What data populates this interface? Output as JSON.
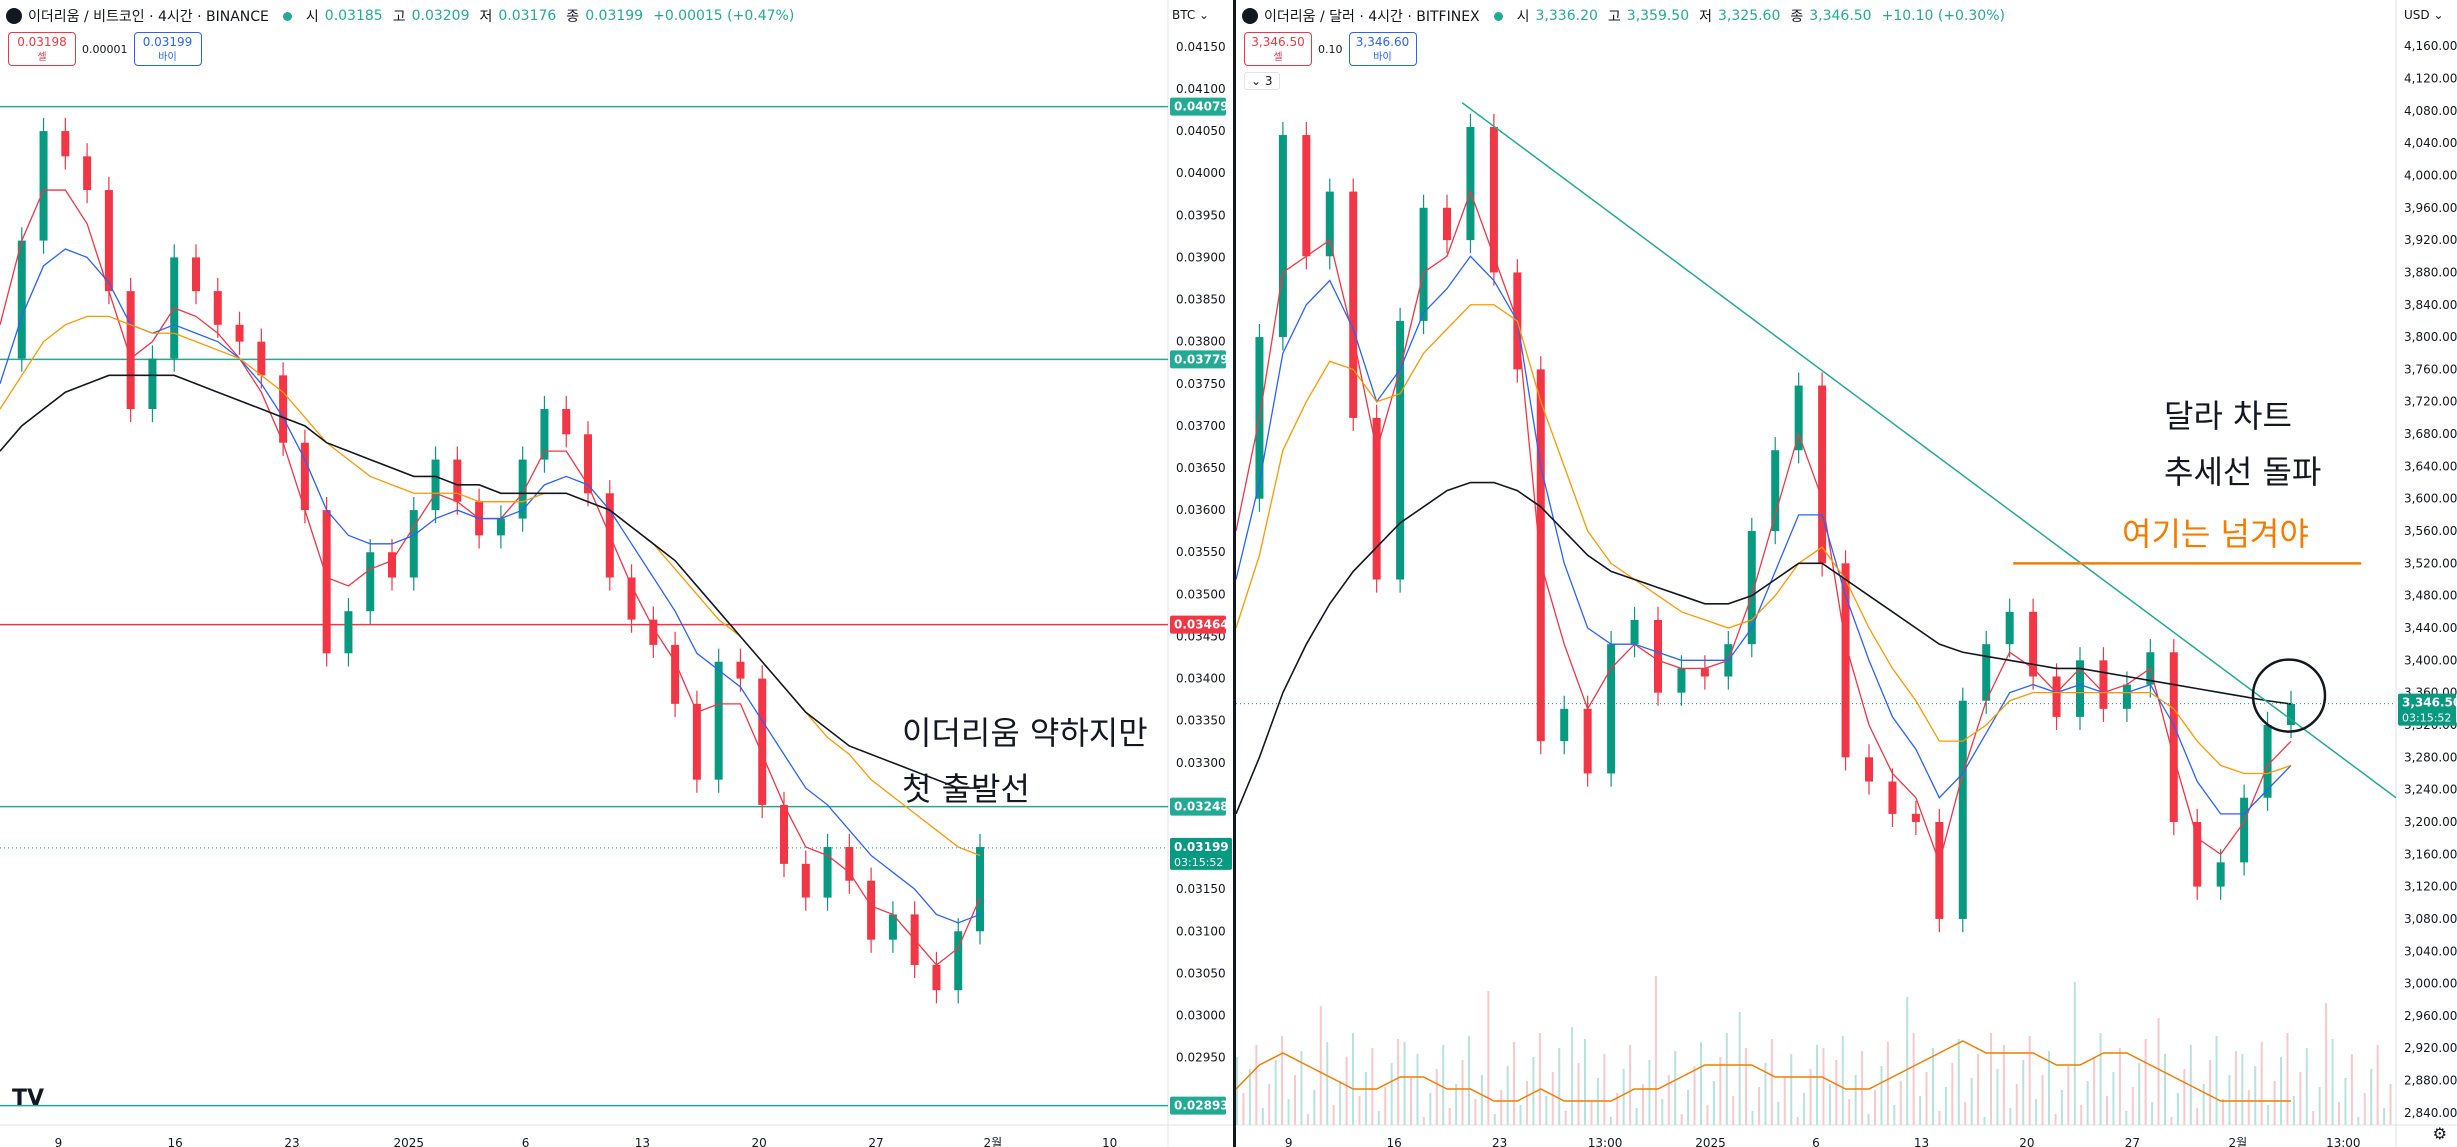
{
  "left": {
    "legend": {
      "title": "이더리움 / 비트코인 · 4시간 · BINANCE",
      "o_label": "시",
      "o": "0.03185",
      "h_label": "고",
      "h": "0.03209",
      "l_label": "저",
      "l": "0.03176",
      "c_label": "종",
      "c": "0.03199",
      "chg": "+0.00015 (+0.47%)"
    },
    "trade": {
      "sell_price": "0.03198",
      "sell_label": "셀",
      "spread": "0.00001",
      "buy_price": "0.03199",
      "buy_label": "바이"
    },
    "currency": "BTC ⌄",
    "annotation": {
      "line1": "이더리움 약하지만",
      "line2": "첫 출발선"
    },
    "chart_data": {
      "type": "line",
      "title": "",
      "ylim": [
        0.0287,
        0.0417
      ],
      "y_ticks": [
        "0.04150",
        "0.04100",
        "0.04050",
        "0.04000",
        "0.03950",
        "0.03900",
        "0.03850",
        "0.03800",
        "0.03750",
        "0.03700",
        "0.03650",
        "0.03600",
        "0.03550",
        "0.03500",
        "0.03450",
        "0.03400",
        "0.03350",
        "0.03300",
        "0.03250",
        "0.03200",
        "0.03150",
        "0.03100",
        "0.03050",
        "0.03000",
        "0.02950"
      ],
      "x_ticks": [
        "9",
        "16",
        "23",
        "2025",
        "6",
        "13",
        "20",
        "27",
        "2월",
        "10"
      ],
      "horizontal_lines": [
        {
          "value": 0.04079,
          "label": "0.04079",
          "color": "#22ab94"
        },
        {
          "value": 0.03779,
          "label": "0.03779",
          "color": "#22ab94"
        },
        {
          "value": 0.03464,
          "label": "0.03464",
          "color": "#f23645"
        },
        {
          "value": 0.03248,
          "label": "0.03248",
          "color": "#22ab94"
        },
        {
          "value": 0.02893,
          "label": "0.02893",
          "color": "#22ab94"
        }
      ],
      "last_price": {
        "value": 0.03199,
        "label": "0.03199",
        "countdown": "03:15:52"
      },
      "series": [
        {
          "name": "price",
          "color": "#4a4a4a",
          "values": [
            0.0378,
            0.0392,
            0.0405,
            0.0402,
            0.0398,
            0.0386,
            0.0372,
            0.0378,
            0.039,
            0.0386,
            0.0382,
            0.038,
            0.0376,
            0.0368,
            0.036,
            0.0343,
            0.0348,
            0.0355,
            0.0352,
            0.036,
            0.0366,
            0.0361,
            0.0357,
            0.0359,
            0.0366,
            0.0372,
            0.0369,
            0.0362,
            0.0352,
            0.0347,
            0.0344,
            0.0337,
            0.0328,
            0.0342,
            0.034,
            0.0325,
            0.0318,
            0.0314,
            0.032,
            0.0316,
            0.0309,
            0.0312,
            0.0306,
            0.0303,
            0.031,
            0.032
          ]
        },
        {
          "name": "ma-short",
          "color": "#f23645",
          "values": [
            0.0382,
            0.0392,
            0.0398,
            0.0398,
            0.0394,
            0.0386,
            0.0378,
            0.038,
            0.0384,
            0.0383,
            0.0381,
            0.0378,
            0.0374,
            0.0368,
            0.036,
            0.0352,
            0.0351,
            0.0353,
            0.0354,
            0.0358,
            0.0362,
            0.0361,
            0.0359,
            0.0359,
            0.0362,
            0.0367,
            0.0367,
            0.0363,
            0.0357,
            0.0351,
            0.0346,
            0.0342,
            0.0336,
            0.0337,
            0.0337,
            0.0331,
            0.0325,
            0.032,
            0.0319,
            0.0317,
            0.0313,
            0.0312,
            0.0309,
            0.0306,
            0.0308,
            0.0314
          ]
        },
        {
          "name": "ma-mid",
          "color": "#2962ff",
          "values": [
            0.0375,
            0.0383,
            0.0389,
            0.0391,
            0.039,
            0.0387,
            0.0382,
            0.0381,
            0.0382,
            0.0381,
            0.038,
            0.0378,
            0.0375,
            0.0371,
            0.0366,
            0.036,
            0.0357,
            0.0356,
            0.0356,
            0.0357,
            0.0359,
            0.036,
            0.0359,
            0.0359,
            0.036,
            0.0363,
            0.0364,
            0.0363,
            0.036,
            0.0356,
            0.0352,
            0.0348,
            0.0343,
            0.0341,
            0.0339,
            0.0335,
            0.0331,
            0.0327,
            0.0325,
            0.0322,
            0.0319,
            0.0317,
            0.0315,
            0.0312,
            0.0311,
            0.0312
          ]
        },
        {
          "name": "ma-long",
          "color": "#ff9800",
          "values": [
            0.0372,
            0.0376,
            0.038,
            0.0382,
            0.0383,
            0.0383,
            0.0382,
            0.0381,
            0.0381,
            0.038,
            0.0379,
            0.0378,
            0.0376,
            0.0374,
            0.0371,
            0.0368,
            0.0366,
            0.0364,
            0.0363,
            0.0362,
            0.0362,
            0.0362,
            0.0361,
            0.0361,
            0.0361,
            0.0362,
            0.0362,
            0.0361,
            0.036,
            0.0358,
            0.0356,
            0.0353,
            0.035,
            0.0347,
            0.0345,
            0.0342,
            0.0339,
            0.0336,
            0.0333,
            0.0331,
            0.0328,
            0.0326,
            0.0324,
            0.0322,
            0.032,
            0.0319
          ]
        },
        {
          "name": "ma-200",
          "color": "#131722",
          "values": [
            0.0367,
            0.037,
            0.0372,
            0.0374,
            0.0375,
            0.0376,
            0.0376,
            0.0376,
            0.0376,
            0.0375,
            0.0374,
            0.0373,
            0.0372,
            0.0371,
            0.037,
            0.0368,
            0.0367,
            0.0366,
            0.0365,
            0.0364,
            0.0364,
            0.0363,
            0.0363,
            0.0362,
            0.0362,
            0.0362,
            0.0362,
            0.0361,
            0.036,
            0.0358,
            0.0356,
            0.0354,
            0.0351,
            0.0348,
            0.0345,
            0.0342,
            0.0339,
            0.0336,
            0.0334,
            0.0332,
            0.0331,
            0.033,
            0.0329,
            0.0328,
            0.0327,
            0.0327
          ]
        }
      ]
    }
  },
  "right": {
    "legend": {
      "title": "이더리움 / 달러 · 4시간 · BITFINEX",
      "o_label": "시",
      "o": "3,336.20",
      "h_label": "고",
      "h": "3,359.50",
      "l_label": "저",
      "l": "3,325.60",
      "c_label": "종",
      "c": "3,346.50",
      "chg": "+10.10 (+0.30%)"
    },
    "trade": {
      "sell_price": "3,346.50",
      "sell_label": "셀",
      "spread": "0.10",
      "buy_price": "3,346.60",
      "buy_label": "바이"
    },
    "indicator_toggle": "⌄ 3",
    "currency": "USD ⌄",
    "annotation": {
      "line1": "달라 차트",
      "line2": "추세선 돌파",
      "line3": "여기는 넘겨야"
    },
    "chart_data": {
      "type": "line",
      "title": "",
      "ylim": [
        2825,
        4180
      ],
      "y_ticks": [
        "4,160.00",
        "4,120.00",
        "4,080.00",
        "4,040.00",
        "4,000.00",
        "3,960.00",
        "3,920.00",
        "3,880.00",
        "3,840.00",
        "3,800.00",
        "3,760.00",
        "3,720.00",
        "3,680.00",
        "3,640.00",
        "3,600.00",
        "3,560.00",
        "3,520.00",
        "3,480.00",
        "3,440.00",
        "3,400.00",
        "3,360.00",
        "3,320.00",
        "3,280.00",
        "3,240.00",
        "3,200.00",
        "3,160.00",
        "3,120.00",
        "3,080.00",
        "3,040.00",
        "3,000.00",
        "2,960.00",
        "2,920.00",
        "2,880.00",
        "2,840.00"
      ],
      "x_ticks": [
        "9",
        "16",
        "23",
        "13:00",
        "2025",
        "6",
        "13",
        "20",
        "27",
        "2월",
        "13:00"
      ],
      "trendline": {
        "from": [
          0.195,
          4090
        ],
        "to": [
          1.0,
          3230
        ],
        "color": "#22ab94"
      },
      "resistance": {
        "value": 3520,
        "color": "#f57c00"
      },
      "last_price": {
        "value": 3346.5,
        "label": "3,346.50",
        "countdown": "03:15:52"
      },
      "series": [
        {
          "name": "price",
          "color": "#4a4a4a",
          "values": [
            3600,
            3800,
            4050,
            3900,
            3980,
            3700,
            3500,
            3820,
            3960,
            3920,
            4060,
            3880,
            3760,
            3300,
            3340,
            3260,
            3420,
            3450,
            3360,
            3390,
            3380,
            3420,
            3560,
            3660,
            3740,
            3520,
            3280,
            3250,
            3210,
            3200,
            3080,
            3350,
            3420,
            3460,
            3380,
            3330,
            3400,
            3340,
            3370,
            3410,
            3200,
            3120,
            3150,
            3230,
            3320,
            3346
          ]
        },
        {
          "name": "ma-short",
          "color": "#f23645",
          "values": [
            3560,
            3700,
            3880,
            3900,
            3920,
            3800,
            3660,
            3760,
            3880,
            3900,
            3980,
            3900,
            3820,
            3520,
            3420,
            3340,
            3390,
            3420,
            3400,
            3390,
            3390,
            3400,
            3480,
            3580,
            3680,
            3600,
            3420,
            3320,
            3260,
            3230,
            3150,
            3260,
            3350,
            3410,
            3390,
            3360,
            3390,
            3360,
            3370,
            3390,
            3280,
            3180,
            3160,
            3200,
            3270,
            3300
          ]
        },
        {
          "name": "ma-mid",
          "color": "#2962ff",
          "values": [
            3500,
            3620,
            3780,
            3840,
            3870,
            3810,
            3720,
            3760,
            3830,
            3860,
            3900,
            3870,
            3820,
            3640,
            3520,
            3440,
            3420,
            3420,
            3410,
            3400,
            3400,
            3400,
            3440,
            3510,
            3580,
            3580,
            3480,
            3400,
            3330,
            3290,
            3230,
            3260,
            3310,
            3360,
            3370,
            3360,
            3370,
            3360,
            3360,
            3370,
            3320,
            3250,
            3210,
            3210,
            3240,
            3270
          ]
        },
        {
          "name": "ma-long",
          "color": "#ff9800",
          "values": [
            3440,
            3530,
            3660,
            3720,
            3770,
            3760,
            3720,
            3730,
            3780,
            3810,
            3840,
            3840,
            3820,
            3720,
            3640,
            3560,
            3520,
            3500,
            3480,
            3460,
            3450,
            3440,
            3450,
            3480,
            3520,
            3540,
            3500,
            3440,
            3390,
            3350,
            3300,
            3300,
            3320,
            3350,
            3360,
            3360,
            3360,
            3360,
            3360,
            3360,
            3340,
            3300,
            3270,
            3260,
            3260,
            3270
          ]
        },
        {
          "name": "ma-200",
          "color": "#131722",
          "values": [
            3210,
            3280,
            3360,
            3420,
            3470,
            3510,
            3540,
            3570,
            3590,
            3610,
            3620,
            3620,
            3610,
            3590,
            3560,
            3530,
            3510,
            3500,
            3490,
            3480,
            3470,
            3470,
            3480,
            3500,
            3520,
            3520,
            3500,
            3480,
            3460,
            3440,
            3420,
            3410,
            3405,
            3400,
            3395,
            3390,
            3390,
            3385,
            3380,
            3375,
            3370,
            3365,
            3360,
            3355,
            3350,
            3346
          ]
        },
        {
          "name": "volume-ma",
          "color": "#f57c00",
          "values": [
            0.3,
            0.5,
            0.6,
            0.5,
            0.4,
            0.3,
            0.3,
            0.4,
            0.4,
            0.3,
            0.3,
            0.2,
            0.2,
            0.3,
            0.2,
            0.2,
            0.2,
            0.3,
            0.3,
            0.4,
            0.5,
            0.5,
            0.5,
            0.4,
            0.4,
            0.4,
            0.3,
            0.3,
            0.4,
            0.5,
            0.6,
            0.7,
            0.6,
            0.6,
            0.6,
            0.5,
            0.5,
            0.6,
            0.6,
            0.5,
            0.4,
            0.3,
            0.2,
            0.2,
            0.2,
            0.2
          ]
        }
      ]
    }
  }
}
